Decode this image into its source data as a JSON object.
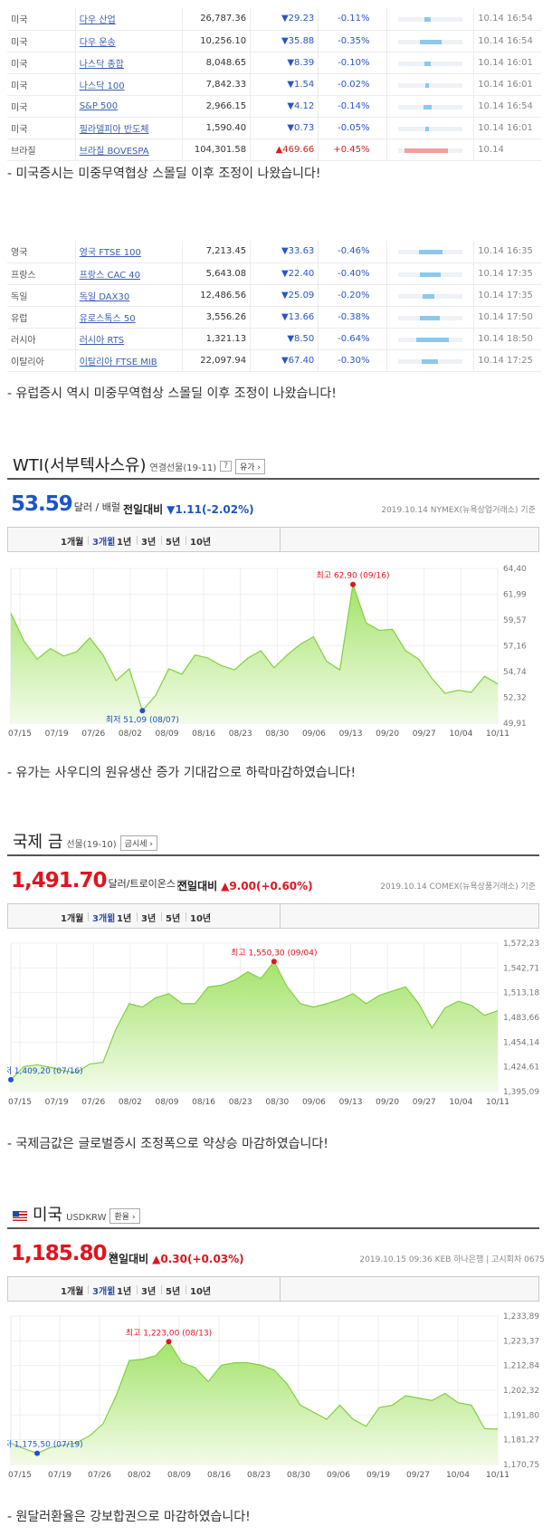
{
  "us_table": [
    {
      "country": "미국",
      "name": "다우 산업",
      "value": "26,787.36",
      "change": "▼29.23",
      "pct": "-0.11%",
      "dir": "down",
      "bar": 0.12,
      "time": "10.14 16:54"
    },
    {
      "country": "미국",
      "name": "다우 운송",
      "value": "10,256.10",
      "change": "▼35.88",
      "pct": "-0.35%",
      "dir": "down",
      "bar": 0.38,
      "time": "10.14 16:54"
    },
    {
      "country": "미국",
      "name": "나스닥 종합",
      "value": "8,048.65",
      "change": "▼8.39",
      "pct": "-0.10%",
      "dir": "down",
      "bar": 0.11,
      "time": "10.14 16:01"
    },
    {
      "country": "미국",
      "name": "나스닥 100",
      "value": "7,842.33",
      "change": "▼1.54",
      "pct": "-0.02%",
      "dir": "down",
      "bar": 0.04,
      "time": "10.14 16:01"
    },
    {
      "country": "미국",
      "name": "S&P 500",
      "value": "2,966.15",
      "change": "▼4.12",
      "pct": "-0.14%",
      "dir": "down",
      "bar": 0.14,
      "time": "10.14 16:54"
    },
    {
      "country": "미국",
      "name": "필라델피아 반도체",
      "value": "1,590.40",
      "change": "▼0.73",
      "pct": "-0.05%",
      "dir": "down",
      "bar": 0.06,
      "time": "10.14 16:01"
    },
    {
      "country": "브라질",
      "name": "브라질 BOVESPA",
      "value": "104,301.58",
      "change": "▲469.66",
      "pct": "+0.45%",
      "dir": "up",
      "bar": 0.48,
      "time": "10.14"
    }
  ],
  "caption_us": "- 미국증시는 미중무역협상 스몰딜 이후 조정이 나왔습니다!",
  "eu_table": [
    {
      "country": "영국",
      "name": "영국 FTSE 100",
      "value": "7,213.45",
      "change": "▼33.63",
      "pct": "-0.46%",
      "dir": "down",
      "bar": 0.4,
      "time": "10.14 16:35"
    },
    {
      "country": "프랑스",
      "name": "프랑스 CAC 40",
      "value": "5,643.08",
      "change": "▼22.40",
      "pct": "-0.40%",
      "dir": "down",
      "bar": 0.35,
      "time": "10.14 17:35"
    },
    {
      "country": "독일",
      "name": "독일 DAX30",
      "value": "12,486.56",
      "change": "▼25.09",
      "pct": "-0.20%",
      "dir": "down",
      "bar": 0.2,
      "time": "10.14 17:35"
    },
    {
      "country": "유럽",
      "name": "유로스톡스 50",
      "value": "3,556.26",
      "change": "▼13.66",
      "pct": "-0.38%",
      "dir": "down",
      "bar": 0.34,
      "time": "10.14 17:50"
    },
    {
      "country": "러시아",
      "name": "러시아 RTS",
      "value": "1,321.13",
      "change": "▼8.50",
      "pct": "-0.64%",
      "dir": "down",
      "bar": 0.55,
      "time": "10.14 18:50"
    },
    {
      "country": "이탈리아",
      "name": "이탈리아 FTSE MIB",
      "value": "22,097.94",
      "change": "▼67.40",
      "pct": "-0.30%",
      "dir": "down",
      "bar": 0.28,
      "time": "10.14 17:25"
    }
  ],
  "caption_eu": "- 유럽증시 역시 미중무역협상 스몰딜 이후 조정이 나왔습니다!",
  "tabs": [
    "1개월",
    "3개월",
    "1년",
    "3년",
    "5년",
    "10년"
  ],
  "active_tab": "3개월",
  "change_label": "전일대비",
  "wti": {
    "title": "WTI(서부텍사스유)",
    "sub": "연결선물(19-11)",
    "help": "?",
    "tag": "유가",
    "price": "53.59",
    "unit": "달러 / 배럴",
    "change": "▼1.11(-2.02%)",
    "meta": "2019.10.14  NYMEX(뉴욕상업거래소) 기준"
  },
  "caption_wti": "- 유가는 사우디의 원유생산 증가 기대감으로 하락마감하였습니다!",
  "gold": {
    "title": "국제 금",
    "sub": "선물(19-10)",
    "tag": "금시세",
    "price": "1,491.70",
    "unit": "달러/트로이온스",
    "help": "?",
    "change": "▲9.00(+0.60%)",
    "meta": "2019.10.14  COMEX(뉴욕상품거래소) 기준"
  },
  "caption_gold": "- 국제금값은 글로벌증시 조정폭으로 약상승 마감하였습니다!",
  "usd": {
    "title": "미국",
    "sub": "USDKRW",
    "tag": "환율",
    "price": "1,185.80",
    "unit": "원",
    "change": "▲0.30(+0.03%)",
    "meta": "2019.10.15 09:36  KEB 하나은행  |  고시회차 0675"
  },
  "caption_usd": "- 원달러환율은 강보합권으로 마감하였습니다!",
  "chart_data": [
    {
      "type": "area",
      "title": "WTI(서부텍사스유)",
      "x": [
        "07/15",
        "07/17",
        "07/19",
        "07/22",
        "07/24",
        "07/26",
        "07/29",
        "07/31",
        "08/02",
        "08/05",
        "08/07",
        "08/09",
        "08/12",
        "08/14",
        "08/16",
        "08/19",
        "08/21",
        "08/23",
        "08/26",
        "08/28",
        "08/30",
        "09/03",
        "09/05",
        "09/09",
        "09/11",
        "09/13",
        "09/16",
        "09/18",
        "09/20",
        "09/23",
        "09/25",
        "09/27",
        "09/30",
        "10/02",
        "10/04",
        "10/07",
        "10/09",
        "10/11"
      ],
      "values": [
        60.2,
        57.6,
        55.9,
        56.9,
        56.2,
        56.6,
        57.9,
        56.3,
        53.9,
        55.0,
        51.09,
        52.5,
        55.0,
        54.5,
        56.3,
        56.0,
        55.3,
        54.9,
        56.0,
        56.7,
        55.1,
        56.3,
        57.3,
        58.0,
        55.7,
        54.9,
        62.9,
        59.3,
        58.6,
        58.7,
        56.7,
        55.9,
        54.1,
        52.7,
        53.0,
        52.8,
        54.3,
        53.59
      ],
      "ylim": [
        49.91,
        64.4
      ],
      "y_ticks": [
        "64,40",
        "61,99",
        "59,57",
        "57,16",
        "54,74",
        "52,32",
        "49,91"
      ],
      "x_ticks": [
        "07/15",
        "07/19",
        "07/26",
        "08/02",
        "08/09",
        "08/16",
        "08/23",
        "08/30",
        "09/06",
        "09/13",
        "09/20",
        "09/27",
        "10/04",
        "10/11"
      ],
      "max_label": "최고 62,90 (09/16)",
      "min_label": "최저 51,09 (08/07)",
      "max_index": 26,
      "min_index": 10
    },
    {
      "type": "area",
      "title": "국제 금",
      "x": [
        "07/15",
        "07/17",
        "07/19",
        "07/22",
        "07/24",
        "07/26",
        "07/29",
        "07/31",
        "08/02",
        "08/05",
        "08/07",
        "08/09",
        "08/12",
        "08/14",
        "08/16",
        "08/19",
        "08/21",
        "08/23",
        "08/26",
        "08/28",
        "08/30",
        "09/03",
        "09/05",
        "09/09",
        "09/11",
        "09/13",
        "09/16",
        "09/18",
        "09/20",
        "09/23",
        "09/25",
        "09/27",
        "09/30",
        "10/02",
        "10/04",
        "10/07",
        "10/09",
        "10/11"
      ],
      "values": [
        1409.2,
        1425.0,
        1427.0,
        1424.0,
        1420.0,
        1418.0,
        1428.0,
        1430.0,
        1470.0,
        1500.0,
        1496.0,
        1507.0,
        1512.0,
        1500.0,
        1500.0,
        1520.0,
        1522.0,
        1528.0,
        1538.0,
        1530.0,
        1550.3,
        1520.0,
        1500.0,
        1496.0,
        1500.0,
        1505.0,
        1512.0,
        1500.0,
        1510.0,
        1515.0,
        1520.0,
        1500.0,
        1471.0,
        1495.0,
        1503.0,
        1498.0,
        1486.0,
        1491.7
      ],
      "ylim": [
        1395.09,
        1572.23
      ],
      "y_ticks": [
        "1,572,23",
        "1,542,71",
        "1,513,18",
        "1,483,66",
        "1,454,14",
        "1,424,61",
        "1,395,09"
      ],
      "x_ticks": [
        "07/15",
        "07/19",
        "07/26",
        "08/02",
        "08/09",
        "08/16",
        "08/23",
        "08/30",
        "09/06",
        "09/13",
        "09/20",
        "09/27",
        "10/04",
        "10/11"
      ],
      "max_label": "최고 1,550,30 (09/04)",
      "min_label": "최저 1,409,20 (07/16)",
      "max_index": 20,
      "min_index": 0
    },
    {
      "type": "area",
      "title": "미국 USDKRW",
      "x": [
        "07/15",
        "07/17",
        "07/19",
        "07/22",
        "07/24",
        "07/26",
        "07/29",
        "07/31",
        "08/02",
        "08/05",
        "08/07",
        "08/09",
        "08/12",
        "08/14",
        "08/16",
        "08/19",
        "08/21",
        "08/23",
        "08/26",
        "08/28",
        "08/30",
        "09/03",
        "09/05",
        "09/09",
        "09/11",
        "09/13",
        "09/16",
        "09/18",
        "09/20",
        "09/23",
        "09/25",
        "09/27",
        "09/30",
        "10/02",
        "10/04",
        "10/07",
        "10/09",
        "10/11"
      ],
      "values": [
        1179.8,
        1177.5,
        1175.5,
        1178.0,
        1179.0,
        1180.0,
        1183.0,
        1188.0,
        1200.0,
        1215.0,
        1215.5,
        1217.0,
        1223.0,
        1214.0,
        1212.0,
        1206.0,
        1213.0,
        1214.0,
        1214.0,
        1213.0,
        1211.0,
        1205.0,
        1196.0,
        1193.0,
        1190.0,
        1196.0,
        1190.0,
        1187.0,
        1195.0,
        1196.0,
        1200.0,
        1199.0,
        1198.0,
        1201.0,
        1197.0,
        1196.0,
        1186.0,
        1185.8
      ],
      "ylim": [
        1170.75,
        1233.89
      ],
      "y_ticks": [
        "1,233,89",
        "1,223,37",
        "1,212,84",
        "1,202,32",
        "1,191,80",
        "1,181,27",
        "1,170,75"
      ],
      "x_ticks": [
        "07/15",
        "07/19",
        "07/26",
        "08/02",
        "08/09",
        "08/16",
        "08/23",
        "08/30",
        "09/06",
        "09/19",
        "09/27",
        "10/04",
        "10/11"
      ],
      "max_label": "최고 1,223,00 (08/13)",
      "min_label": "최저 1,175,50 (07/19)",
      "max_index": 12,
      "min_index": 2
    }
  ]
}
